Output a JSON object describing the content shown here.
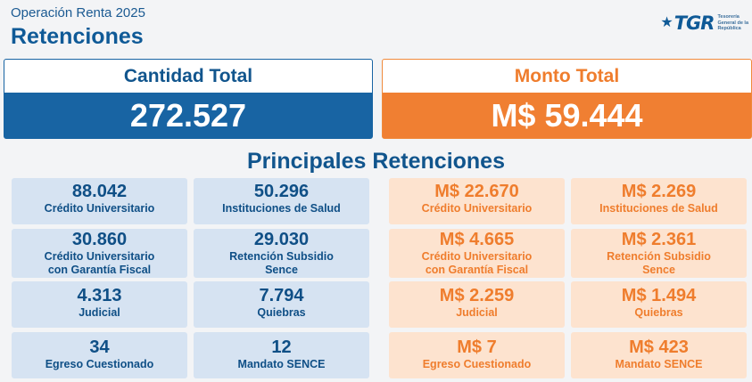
{
  "header": {
    "supertitle": "Operación Renta 2025",
    "title": "Retenciones",
    "logo": {
      "icon": "star-icon",
      "mark": "TGR",
      "line1": "Tesorería",
      "line2": "General de la",
      "line3": "República"
    }
  },
  "totals": {
    "count": {
      "label": "Cantidad Total",
      "value": "272.527",
      "color": "#1864a3"
    },
    "amount": {
      "label": "Monto Total",
      "value": "M$ 59.444",
      "color": "#f07f32"
    }
  },
  "section_title": "Principales Retenciones",
  "quantities": [
    {
      "value": "88.042",
      "label1": "Crédito Universitario",
      "label2": ""
    },
    {
      "value": "50.296",
      "label1": "Instituciones de Salud",
      "label2": ""
    },
    {
      "value": "30.860",
      "label1": "Crédito Universitario",
      "label2": "con Garantía Fiscal"
    },
    {
      "value": "29.030",
      "label1": "Retención Subsidio",
      "label2": "Sence"
    },
    {
      "value": "4.313",
      "label1": "Judicial",
      "label2": ""
    },
    {
      "value": "7.794",
      "label1": "Quiebras",
      "label2": ""
    },
    {
      "value": "34",
      "label1": "Egreso Cuestionado",
      "label2": ""
    },
    {
      "value": "12",
      "label1": "Mandato SENCE",
      "label2": ""
    }
  ],
  "amounts": [
    {
      "value": "M$ 22.670",
      "label1": "Crédito Universitario",
      "label2": ""
    },
    {
      "value": "M$ 2.269",
      "label1": "Instituciones de Salud",
      "label2": ""
    },
    {
      "value": "M$ 4.665",
      "label1": "Crédito Universitario",
      "label2": "con Garantía Fiscal"
    },
    {
      "value": "M$ 2.361",
      "label1": "Retención Subsidio",
      "label2": "Sence"
    },
    {
      "value": "M$ 2.259",
      "label1": "Judicial",
      "label2": ""
    },
    {
      "value": "M$ 1.494",
      "label1": "Quiebras",
      "label2": ""
    },
    {
      "value": "M$ 7",
      "label1": "Egreso Cuestionado",
      "label2": ""
    },
    {
      "value": "M$ 423",
      "label1": "Mandato SENCE",
      "label2": ""
    }
  ]
}
